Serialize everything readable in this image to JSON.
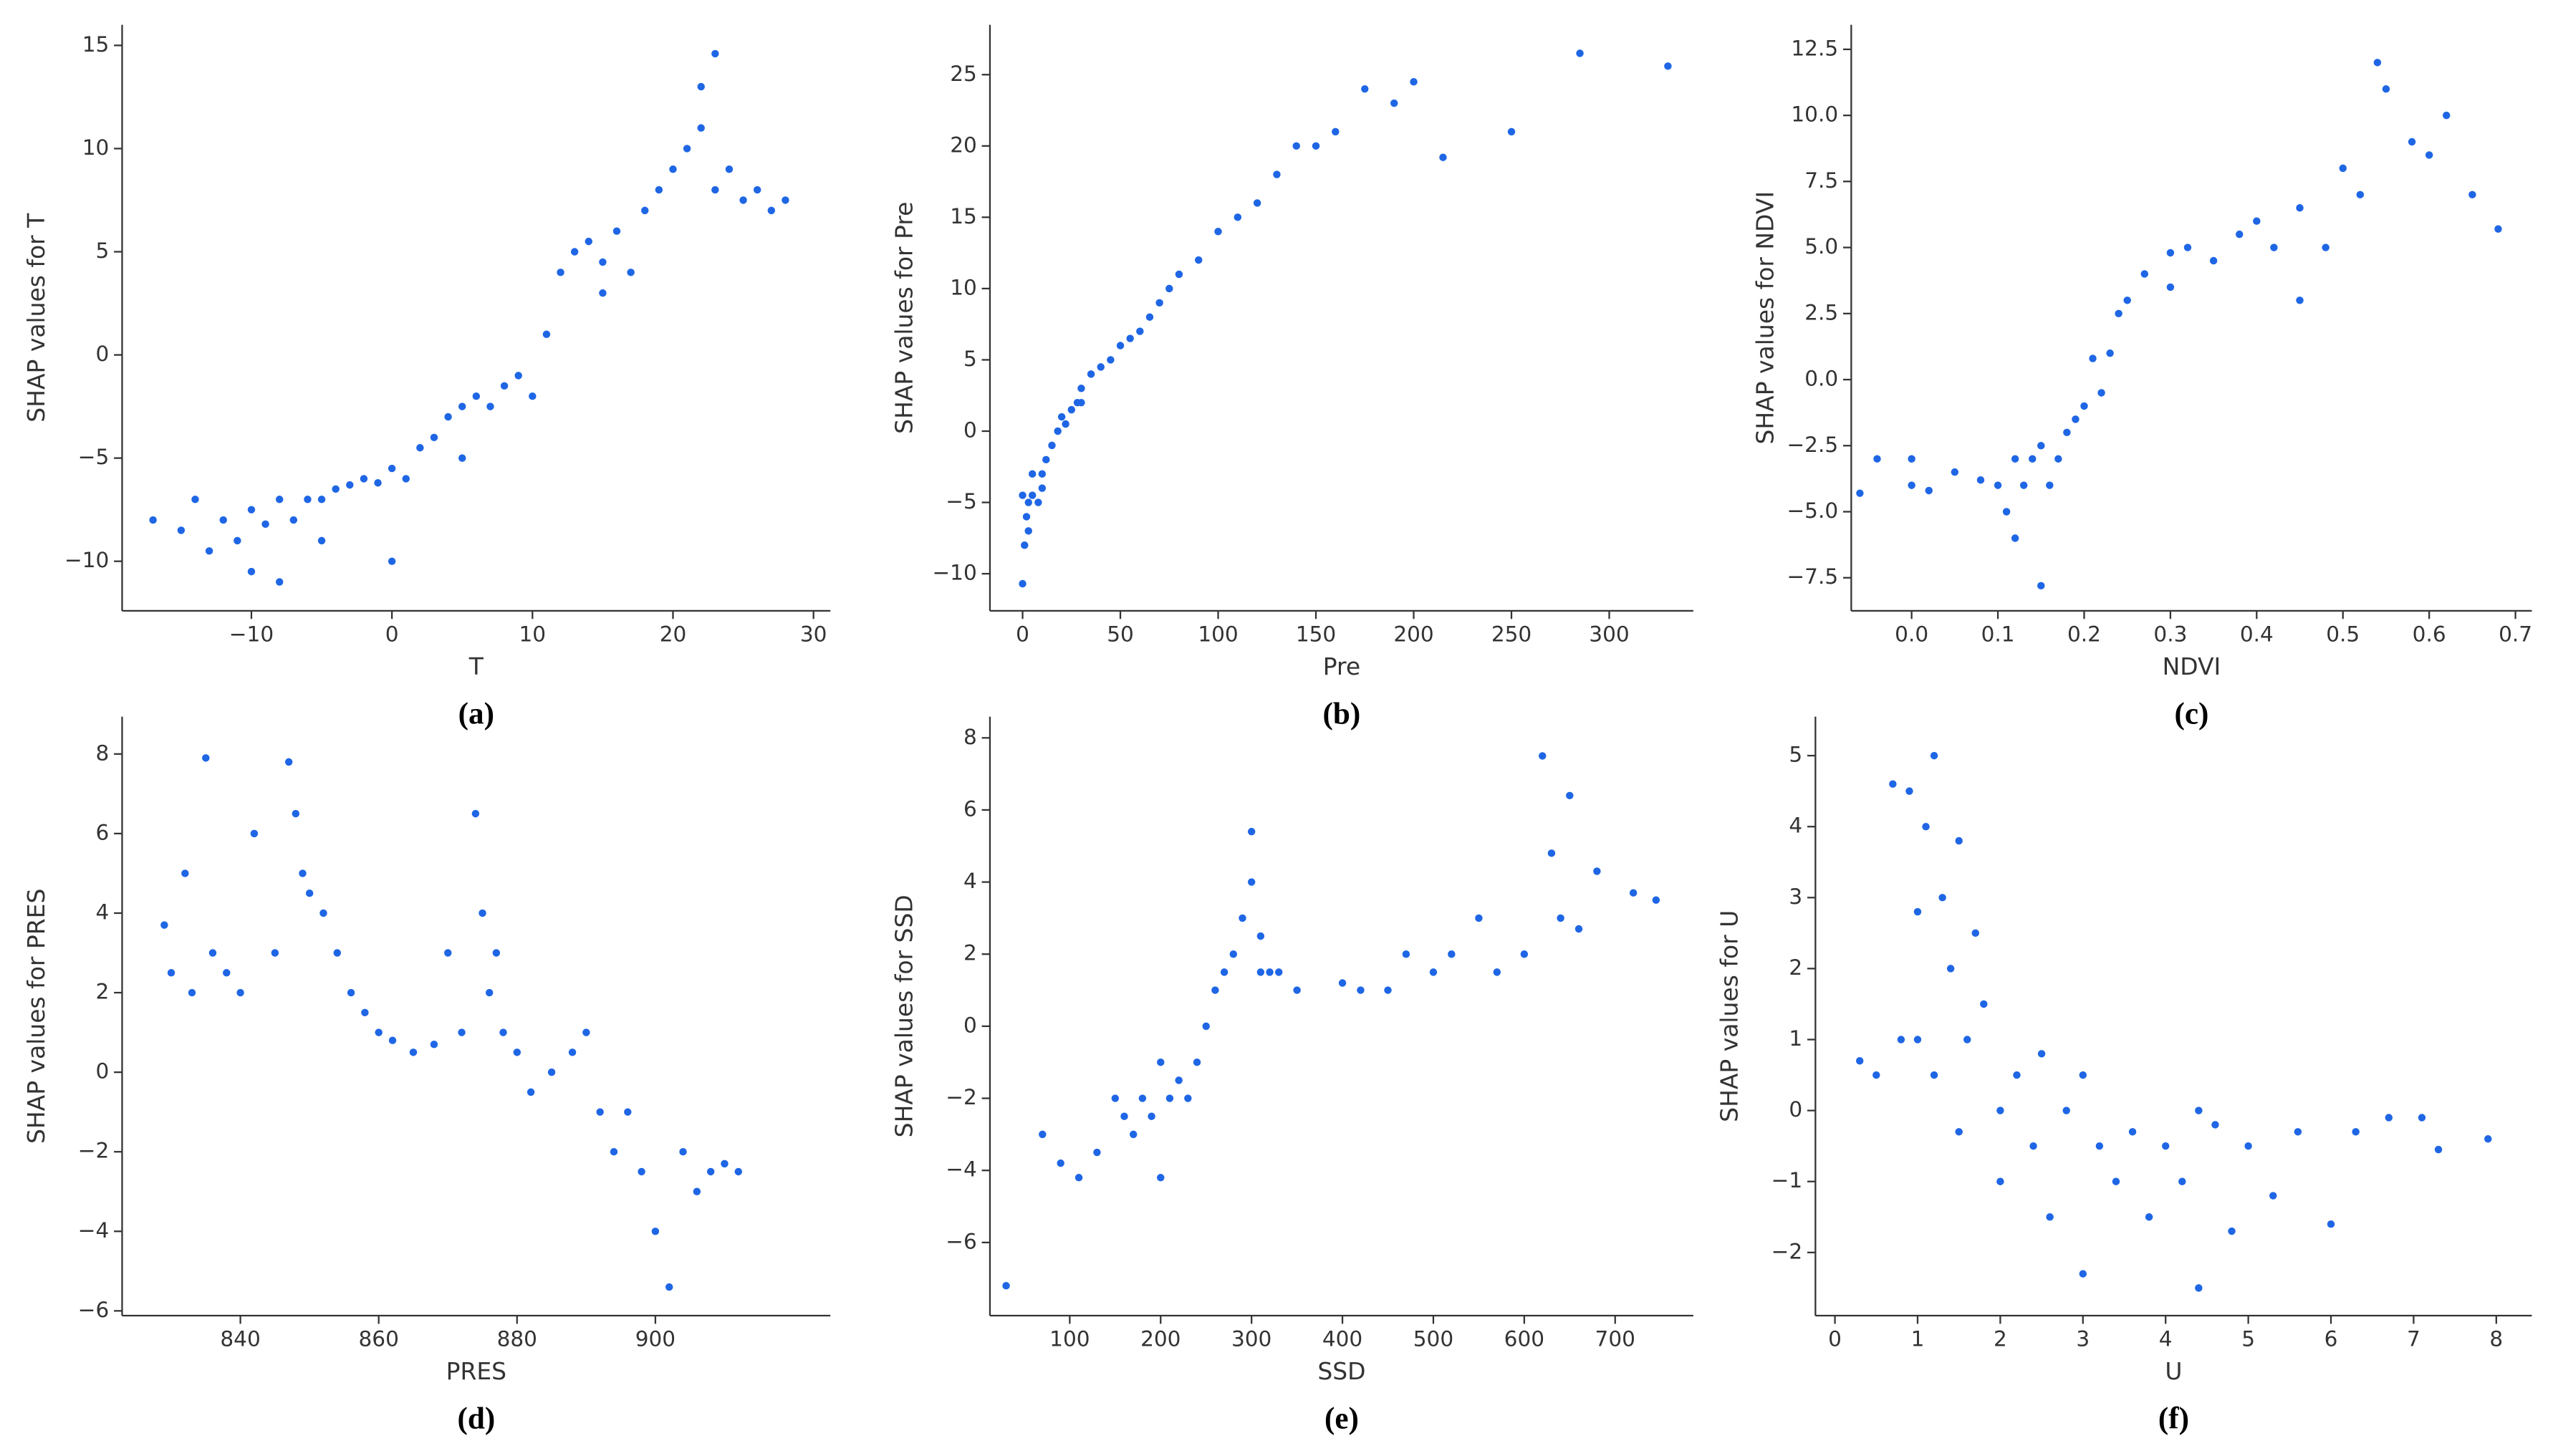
{
  "chart_data": [
    {
      "type": "scatter",
      "caption": "(a)",
      "xlabel": "T",
      "ylabel": "SHAP values for T",
      "color": "#1f66e5",
      "x": [
        -17,
        -15,
        -14,
        -13,
        -12,
        -11,
        -10,
        -9,
        -8,
        -7,
        -6,
        -5,
        -4,
        -3,
        -2,
        -1,
        0,
        1,
        2,
        3,
        4,
        5,
        6,
        7,
        8,
        9,
        10,
        11,
        12,
        13,
        14,
        15,
        16,
        17,
        18,
        19,
        20,
        21,
        22,
        23,
        24,
        25,
        26,
        27,
        28,
        -10,
        -8,
        -5,
        0,
        5,
        15,
        22,
        23
      ],
      "values": [
        -8,
        -8.5,
        -7,
        -9.5,
        -8,
        -9,
        -7.5,
        -8.2,
        -7,
        -8,
        -7,
        -7,
        -6.5,
        -6.3,
        -6,
        -6.2,
        -5.5,
        -6,
        -4.5,
        -4,
        -3,
        -2.5,
        -2,
        -2.5,
        -1.5,
        -1,
        -2,
        1,
        4,
        5,
        5.5,
        4.5,
        6,
        4,
        7,
        8,
        9,
        10,
        11,
        8,
        9,
        7.5,
        8,
        7,
        7.5,
        -10.5,
        -11,
        -9,
        -10,
        -5,
        3,
        13,
        14.6
      ],
      "xlim": [
        -19.2,
        31.2
      ],
      "ylim": [
        -12.4,
        16
      ],
      "xticks": [
        {
          "value": -10,
          "label": "−10"
        },
        0,
        10,
        20,
        30
      ],
      "yticks": [
        {
          "value": -10,
          "label": "−10"
        },
        {
          "value": -5,
          "label": "−5"
        },
        0,
        5,
        10,
        15
      ]
    },
    {
      "type": "scatter",
      "caption": "(b)",
      "xlabel": "Pre",
      "ylabel": "SHAP values for Pre",
      "color": "#1f66e5",
      "x": [
        0,
        1,
        2,
        3,
        5,
        5,
        8,
        10,
        12,
        15,
        18,
        20,
        22,
        25,
        28,
        30,
        35,
        40,
        45,
        50,
        55,
        60,
        65,
        70,
        75,
        80,
        90,
        100,
        110,
        120,
        130,
        140,
        150,
        160,
        175,
        190,
        200,
        215,
        250,
        285,
        330,
        0,
        3,
        10,
        30
      ],
      "values": [
        -10.7,
        -8,
        -6,
        -5,
        -4.5,
        -3,
        -5,
        -3,
        -2,
        -1,
        0,
        1,
        0.5,
        1.5,
        2,
        3,
        4,
        4.5,
        5,
        6,
        6.5,
        7,
        8,
        9,
        10,
        11,
        12,
        14,
        15,
        16,
        18,
        20,
        20,
        21,
        24,
        23,
        24.5,
        19.2,
        21,
        26.5,
        25.6,
        -4.5,
        -7,
        -4,
        2
      ],
      "xlim": [
        -16.7,
        343
      ],
      "ylim": [
        -12.6,
        28.5
      ],
      "xticks": [
        0,
        50,
        100,
        150,
        200,
        250,
        300
      ],
      "yticks": [
        {
          "value": -10,
          "label": "−10"
        },
        {
          "value": -5,
          "label": "−5"
        },
        0,
        5,
        10,
        15,
        20,
        25
      ]
    },
    {
      "type": "scatter",
      "caption": "(c)",
      "xlabel": "NDVI",
      "ylabel": "SHAP values for NDVI",
      "color": "#1f66e5",
      "x": [
        -0.06,
        -0.04,
        0,
        0,
        0.02,
        0.05,
        0.08,
        0.1,
        0.11,
        0.12,
        0.13,
        0.14,
        0.15,
        0.16,
        0.17,
        0.18,
        0.19,
        0.2,
        0.21,
        0.22,
        0.23,
        0.24,
        0.25,
        0.27,
        0.3,
        0.32,
        0.35,
        0.38,
        0.4,
        0.42,
        0.45,
        0.48,
        0.5,
        0.52,
        0.54,
        0.55,
        0.58,
        0.6,
        0.62,
        0.65,
        0.68,
        0.15,
        0.12,
        0.45,
        0.3
      ],
      "values": [
        -4.3,
        -3,
        -3,
        -4,
        -4.2,
        -3.5,
        -3.8,
        -4,
        -5,
        -6,
        -4,
        -3,
        -7.8,
        -4,
        -3,
        -2,
        -1.5,
        -1,
        0.8,
        -0.5,
        1,
        2.5,
        3,
        4,
        3.5,
        5,
        4.5,
        5.5,
        6,
        5,
        6.5,
        5,
        8,
        7,
        12,
        11,
        9,
        8.5,
        10,
        7,
        5.7,
        -2.5,
        -3,
        3,
        4.8
      ],
      "xlim": [
        -0.07,
        0.719
      ],
      "ylim": [
        -8.75,
        13.43
      ],
      "xticks": [
        {
          "value": 0,
          "label": "0.0"
        },
        0.1,
        0.2,
        0.3,
        0.4,
        0.5,
        0.6,
        0.7
      ],
      "yticks": [
        {
          "value": -7.5,
          "label": "−7.5"
        },
        {
          "value": -5,
          "label": "−5.0"
        },
        {
          "value": -2.5,
          "label": "−2.5"
        },
        {
          "value": 0,
          "label": "0.0"
        },
        2.5,
        {
          "value": 5,
          "label": "5.0"
        },
        7.5,
        {
          "value": 10,
          "label": "10.0"
        },
        12.5
      ]
    },
    {
      "type": "scatter",
      "caption": "(d)",
      "xlabel": "PRES",
      "ylabel": "SHAP values for PRES",
      "color": "#1f66e5",
      "x": [
        829,
        830,
        832,
        833,
        835,
        836,
        838,
        840,
        842,
        845,
        847,
        848,
        849,
        850,
        852,
        854,
        856,
        858,
        860,
        862,
        865,
        868,
        870,
        872,
        874,
        875,
        876,
        877,
        878,
        880,
        882,
        885,
        888,
        890,
        892,
        894,
        896,
        898,
        900,
        902,
        904,
        906,
        908,
        910,
        912
      ],
      "values": [
        3.7,
        2.5,
        5,
        2,
        7.9,
        3,
        2.5,
        2,
        6,
        3,
        7.8,
        6.5,
        5,
        4.5,
        4,
        3,
        2,
        1.5,
        1,
        0.8,
        0.5,
        0.7,
        3,
        1,
        6.5,
        4,
        2,
        3,
        1,
        0.5,
        -0.5,
        0,
        0.5,
        1,
        -1,
        -2,
        -1,
        -2.5,
        -4,
        -5.4,
        -2,
        -3,
        -2.5,
        -2.3,
        -2.5
      ],
      "xlim": [
        822.9,
        925.3
      ],
      "ylim": [
        -6.12,
        8.94
      ],
      "xticks": [
        840,
        860,
        880,
        900
      ],
      "yticks": [
        {
          "value": -6,
          "label": "−6"
        },
        {
          "value": -4,
          "label": "−4"
        },
        {
          "value": -2,
          "label": "−2"
        },
        0,
        2,
        4,
        6,
        8
      ]
    },
    {
      "type": "scatter",
      "caption": "(e)",
      "xlabel": "SSD",
      "ylabel": "SHAP values for SSD",
      "color": "#1f66e5",
      "x": [
        30,
        70,
        90,
        110,
        130,
        150,
        160,
        170,
        180,
        190,
        200,
        210,
        220,
        230,
        240,
        250,
        260,
        270,
        280,
        290,
        300,
        310,
        320,
        330,
        350,
        400,
        420,
        450,
        470,
        500,
        520,
        550,
        570,
        600,
        620,
        630,
        640,
        650,
        660,
        680,
        720,
        745,
        200,
        300,
        310
      ],
      "values": [
        -7.2,
        -3,
        -3.8,
        -4.2,
        -3.5,
        -2,
        -2.5,
        -3,
        -2,
        -2.5,
        -4.2,
        -2,
        -1.5,
        -2,
        -1,
        0,
        1,
        1.5,
        2,
        3,
        5.4,
        2.5,
        1.5,
        1.5,
        1,
        1.2,
        1,
        1,
        2,
        1.5,
        2,
        3,
        1.5,
        2,
        7.5,
        4.8,
        3,
        6.4,
        2.7,
        4.3,
        3.7,
        3.5,
        -1,
        4,
        1.5
      ],
      "xlim": [
        12.2,
        786
      ],
      "ylim": [
        -8.03,
        8.59
      ],
      "xticks": [
        100,
        200,
        300,
        400,
        500,
        600,
        700
      ],
      "yticks": [
        {
          "value": -6,
          "label": "−6"
        },
        {
          "value": -4,
          "label": "−4"
        },
        {
          "value": -2,
          "label": "−2"
        },
        0,
        2,
        4,
        6,
        8
      ]
    },
    {
      "type": "scatter",
      "caption": "(f)",
      "xlabel": "U",
      "ylabel": "SHAP values for U",
      "color": "#1f66e5",
      "x": [
        0.3,
        0.5,
        0.7,
        0.8,
        0.9,
        1,
        1.1,
        1.2,
        1.3,
        1.4,
        1.5,
        1.6,
        1.7,
        1.8,
        2,
        2.2,
        2.4,
        2.6,
        2.8,
        3,
        3.2,
        3.4,
        3.6,
        3.8,
        4,
        4.2,
        4.4,
        4.6,
        4.8,
        5,
        5.3,
        5.6,
        6,
        6.3,
        6.7,
        7.1,
        7.3,
        7.9,
        1.2,
        1.5,
        2.5,
        3,
        1,
        2,
        4.4
      ],
      "values": [
        0.7,
        0.5,
        4.6,
        1,
        4.5,
        1,
        4,
        5,
        3,
        2,
        3.8,
        1,
        2.5,
        1.5,
        0,
        0.5,
        -0.5,
        -1.5,
        0,
        -2.3,
        -0.5,
        -1,
        -0.3,
        -1.5,
        -0.5,
        -1,
        -2.5,
        -0.2,
        -1.7,
        -0.5,
        -1.2,
        -0.3,
        -1.6,
        -0.3,
        -0.1,
        -0.1,
        -0.55,
        -0.4,
        0.5,
        -0.3,
        0.8,
        0.5,
        2.8,
        -1,
        0
      ],
      "xlim": [
        -0.236,
        8.43
      ],
      "ylim": [
        -2.89,
        5.55
      ],
      "xticks": [
        0,
        1,
        2,
        3,
        4,
        5,
        6,
        7,
        8
      ],
      "yticks": [
        {
          "value": -2,
          "label": "−2"
        },
        {
          "value": -1,
          "label": "−1"
        },
        0,
        1,
        2,
        3,
        4,
        5
      ]
    }
  ]
}
